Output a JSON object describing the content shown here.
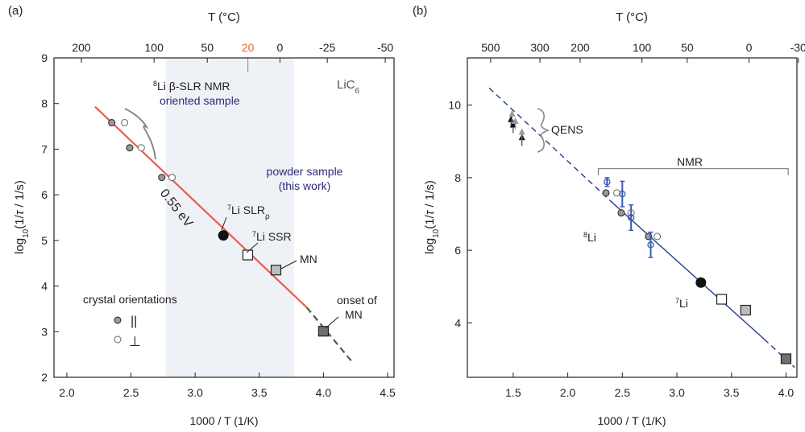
{
  "chart_data": [
    {
      "type": "scatter",
      "panel_label": "(a)",
      "xlabel": "1000 / T  (1/K)",
      "ylabel": "log10(1/τ / 1/s)",
      "ylabel_parts": [
        "log",
        "10",
        "(1/",
        "τ",
        " / 1/s)"
      ],
      "xlim": [
        1.9,
        4.55
      ],
      "ylim": [
        2,
        9
      ],
      "x_ticks": [
        2.0,
        2.5,
        3.0,
        3.5,
        4.0,
        4.5
      ],
      "x_tick_labels": [
        "2.0",
        "2.5",
        "3.0",
        "3.5",
        "4.0",
        "4.5"
      ],
      "y_ticks": [
        2,
        3,
        4,
        5,
        6,
        7,
        8,
        9
      ],
      "y_tick_labels": [
        "2",
        "3",
        "4",
        "5",
        "6",
        "7",
        "8",
        "9"
      ],
      "top_axis": {
        "label": "T (°C)",
        "ticks_celsius": [
          200,
          100,
          50,
          20,
          0,
          -25,
          -50
        ],
        "tick_labels": [
          "200",
          "100",
          "50",
          "20",
          "0",
          "-25",
          "-50"
        ],
        "highlight_tick": "20",
        "highlight_color": "#e8662a"
      },
      "shaded_region_x": [
        2.77,
        3.77
      ],
      "shade_color": "#eef2f6",
      "fit_line": {
        "label": "0.55 eV",
        "x_solid": [
          2.22,
          3.87
        ],
        "y_solid": [
          7.93,
          3.53
        ],
        "x_dashed": [
          3.87,
          4.22
        ],
        "y_dashed": [
          3.53,
          2.35
        ],
        "color": "#ec5a4c",
        "dash_color": "#555555"
      },
      "series": [
        {
          "name": "||",
          "marker": "circle-gray-filled",
          "x": [
            2.35,
            2.49,
            2.74
          ],
          "y": [
            7.58,
            7.03,
            6.38
          ]
        },
        {
          "name": "⊥",
          "marker": "circle-open",
          "x": [
            2.45,
            2.58,
            2.82
          ],
          "y": [
            7.58,
            7.03,
            6.38
          ]
        },
        {
          "name": "7Li SLRρ",
          "marker": "circle-black",
          "x": [
            3.22
          ],
          "y": [
            5.11
          ]
        },
        {
          "name": "7Li SSR",
          "marker": "square-open",
          "x": [
            3.41
          ],
          "y": [
            4.68
          ]
        },
        {
          "name": "MN",
          "marker": "square-lightgray",
          "x": [
            3.63
          ],
          "y": [
            4.35
          ]
        },
        {
          "name": "onset of MN",
          "marker": "square-darkgray",
          "x": [
            4.0
          ],
          "y": [
            3.01
          ]
        }
      ],
      "annotations": {
        "material": "LiC",
        "material_sub": "6",
        "beta_nmr_line1_sup": "8",
        "beta_nmr_line1": "Li β-SLR NMR",
        "beta_nmr_line2": "oriented sample",
        "powder_line1": "powder sample",
        "powder_line2": "(this work)",
        "slr_sup": "7",
        "slr_main": "Li SLR",
        "slr_sub": "ρ",
        "ssr_sup": "7",
        "ssr_main": "Li SSR",
        "mn": "MN",
        "onset_line1": "onset of",
        "onset_line2": "MN",
        "legend_title": "crystal orientations",
        "legend_parallel": "||",
        "legend_perp": "⊥",
        "annotation_color": "#2e2a7a"
      }
    },
    {
      "type": "scatter",
      "panel_label": "(b)",
      "xlabel": "1000 / T  (1/K)",
      "ylabel": "log10(1/τ / 1/s)",
      "ylabel_parts": [
        "log",
        "10",
        "(1/",
        "τ",
        " / 1/s)"
      ],
      "xlim": [
        1.08,
        4.1
      ],
      "ylim": [
        2.5,
        11.3
      ],
      "x_ticks": [
        1.5,
        2.0,
        2.5,
        3.0,
        3.5,
        4.0
      ],
      "x_tick_labels": [
        "1.5",
        "2.0",
        "2.5",
        "3.0",
        "3.5",
        "4.0"
      ],
      "y_ticks": [
        4,
        6,
        8,
        10
      ],
      "y_tick_labels": [
        "4",
        "6",
        "8",
        "10"
      ],
      "top_axis": {
        "label": "T (°C)",
        "ticks_celsius": [
          500,
          300,
          200,
          100,
          50,
          0,
          -30
        ],
        "tick_labels": [
          "500",
          "300",
          "200",
          "100",
          "50",
          "0",
          "-30"
        ]
      },
      "fit_line": {
        "x_dashed_left": [
          1.28,
          2.42
        ],
        "y_dashed_left": [
          10.47,
          7.28
        ],
        "x_solid": [
          2.42,
          3.8
        ],
        "y_solid": [
          7.28,
          3.55
        ],
        "x_dashed_right": [
          3.8,
          4.08
        ],
        "y_dashed_right": [
          3.55,
          2.77
        ],
        "color": "#1f3e8e"
      },
      "series": [
        {
          "name": "QENS",
          "marker": "triangle-black",
          "x": [
            1.48,
            1.5,
            1.58
          ],
          "y": [
            9.6,
            9.45,
            9.1
          ]
        },
        {
          "name": "QENS-gray",
          "marker": "triangle-gray",
          "x": [
            1.49,
            1.52,
            1.58
          ],
          "y": [
            9.75,
            9.55,
            9.25
          ]
        },
        {
          "name": "8Li-parallel",
          "marker": "circle-gray-filled",
          "x": [
            2.35,
            2.49,
            2.74
          ],
          "y": [
            7.58,
            7.03,
            6.38
          ]
        },
        {
          "name": "8Li-perp",
          "marker": "circle-open",
          "x": [
            2.45,
            2.58,
            2.82
          ],
          "y": [
            7.58,
            7.03,
            6.38
          ]
        },
        {
          "name": "8Li-blue",
          "marker": "circle-blue-open",
          "x": [
            2.36,
            2.5,
            2.58,
            2.76
          ],
          "y": [
            7.88,
            7.55,
            6.9,
            6.15
          ],
          "yerr": [
            0.12,
            0.35,
            0.35,
            0.35
          ]
        },
        {
          "name": "7Li",
          "marker": "circle-black",
          "x": [
            3.22
          ],
          "y": [
            5.11
          ]
        },
        {
          "name": "7Li SSR",
          "marker": "square-open",
          "x": [
            3.41
          ],
          "y": [
            4.65
          ]
        },
        {
          "name": "MN",
          "marker": "square-lightgray",
          "x": [
            3.63
          ],
          "y": [
            4.35
          ]
        },
        {
          "name": "onset of MN",
          "marker": "square-darkgray",
          "x": [
            4.0
          ],
          "y": [
            3.01
          ]
        }
      ],
      "annotations": {
        "qens": "QENS",
        "nmr": "NMR",
        "nmr_bracket_x": [
          2.28,
          4.02
        ],
        "nmr_bracket_y": 8.25,
        "li8_sup": "8",
        "li8_main": "Li",
        "li7_sup": "7",
        "li7_main": "Li"
      }
    }
  ]
}
